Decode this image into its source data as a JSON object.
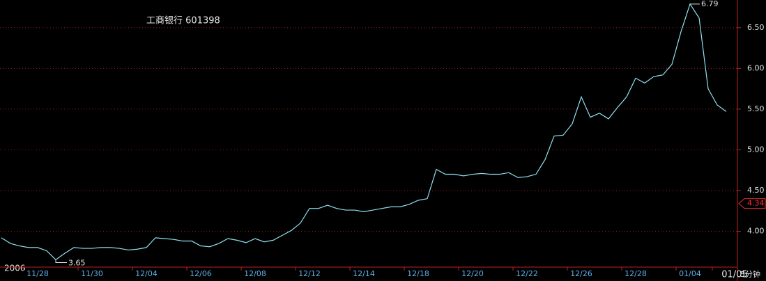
{
  "chart_data": {
    "type": "line",
    "title": "工商银行 601398",
    "year_label": "2006",
    "period_label": "5分钟",
    "high_label": "6.79",
    "low_label": "3.65",
    "marker": {
      "value": 4.34,
      "label": "4.34"
    },
    "color": "#8fe3f0",
    "grid": true,
    "ylim": [
      3.56,
      6.84
    ],
    "yticks": [
      {
        "value": 4.0,
        "label": "4.00"
      },
      {
        "value": 4.5,
        "label": "4.50"
      },
      {
        "value": 5.0,
        "label": "5.00"
      },
      {
        "value": 5.5,
        "label": "5.50"
      },
      {
        "value": 6.0,
        "label": "6.00"
      },
      {
        "value": 6.5,
        "label": "6.50"
      }
    ],
    "categories": [
      null,
      null,
      null,
      null,
      "11/28",
      null,
      null,
      null,
      null,
      null,
      "11/30",
      null,
      null,
      null,
      null,
      null,
      "12/04",
      null,
      null,
      null,
      null,
      null,
      "12/06",
      null,
      null,
      null,
      null,
      null,
      "12/08",
      null,
      null,
      null,
      null,
      null,
      "12/12",
      null,
      null,
      null,
      null,
      null,
      "12/14",
      null,
      null,
      null,
      null,
      null,
      "12/18",
      null,
      null,
      null,
      null,
      null,
      "12/20",
      null,
      null,
      null,
      null,
      null,
      "12/22",
      null,
      null,
      null,
      null,
      null,
      "12/26",
      null,
      null,
      null,
      null,
      null,
      "12/28",
      null,
      null,
      null,
      null,
      null,
      "01/04",
      null,
      null,
      null,
      "01/05"
    ],
    "values": [
      3.92,
      3.85,
      3.82,
      3.8,
      3.8,
      3.76,
      3.65,
      3.73,
      3.8,
      3.79,
      3.79,
      3.8,
      3.8,
      3.79,
      3.77,
      3.78,
      3.8,
      3.92,
      3.91,
      3.9,
      3.88,
      3.88,
      3.82,
      3.81,
      3.85,
      3.91,
      3.89,
      3.86,
      3.91,
      3.87,
      3.89,
      3.95,
      4.01,
      4.1,
      4.28,
      4.28,
      4.32,
      4.28,
      4.26,
      4.26,
      4.24,
      4.26,
      4.28,
      4.3,
      4.3,
      4.33,
      4.38,
      4.4,
      4.76,
      4.7,
      4.7,
      4.68,
      4.7,
      4.71,
      4.7,
      4.7,
      4.72,
      4.66,
      4.67,
      4.7,
      4.88,
      5.17,
      5.18,
      5.32,
      5.65,
      5.4,
      5.45,
      5.38,
      5.52,
      5.65,
      5.88,
      5.82,
      5.9,
      5.92,
      6.05,
      6.45,
      6.79,
      6.62,
      5.75,
      5.55,
      5.47
    ]
  }
}
